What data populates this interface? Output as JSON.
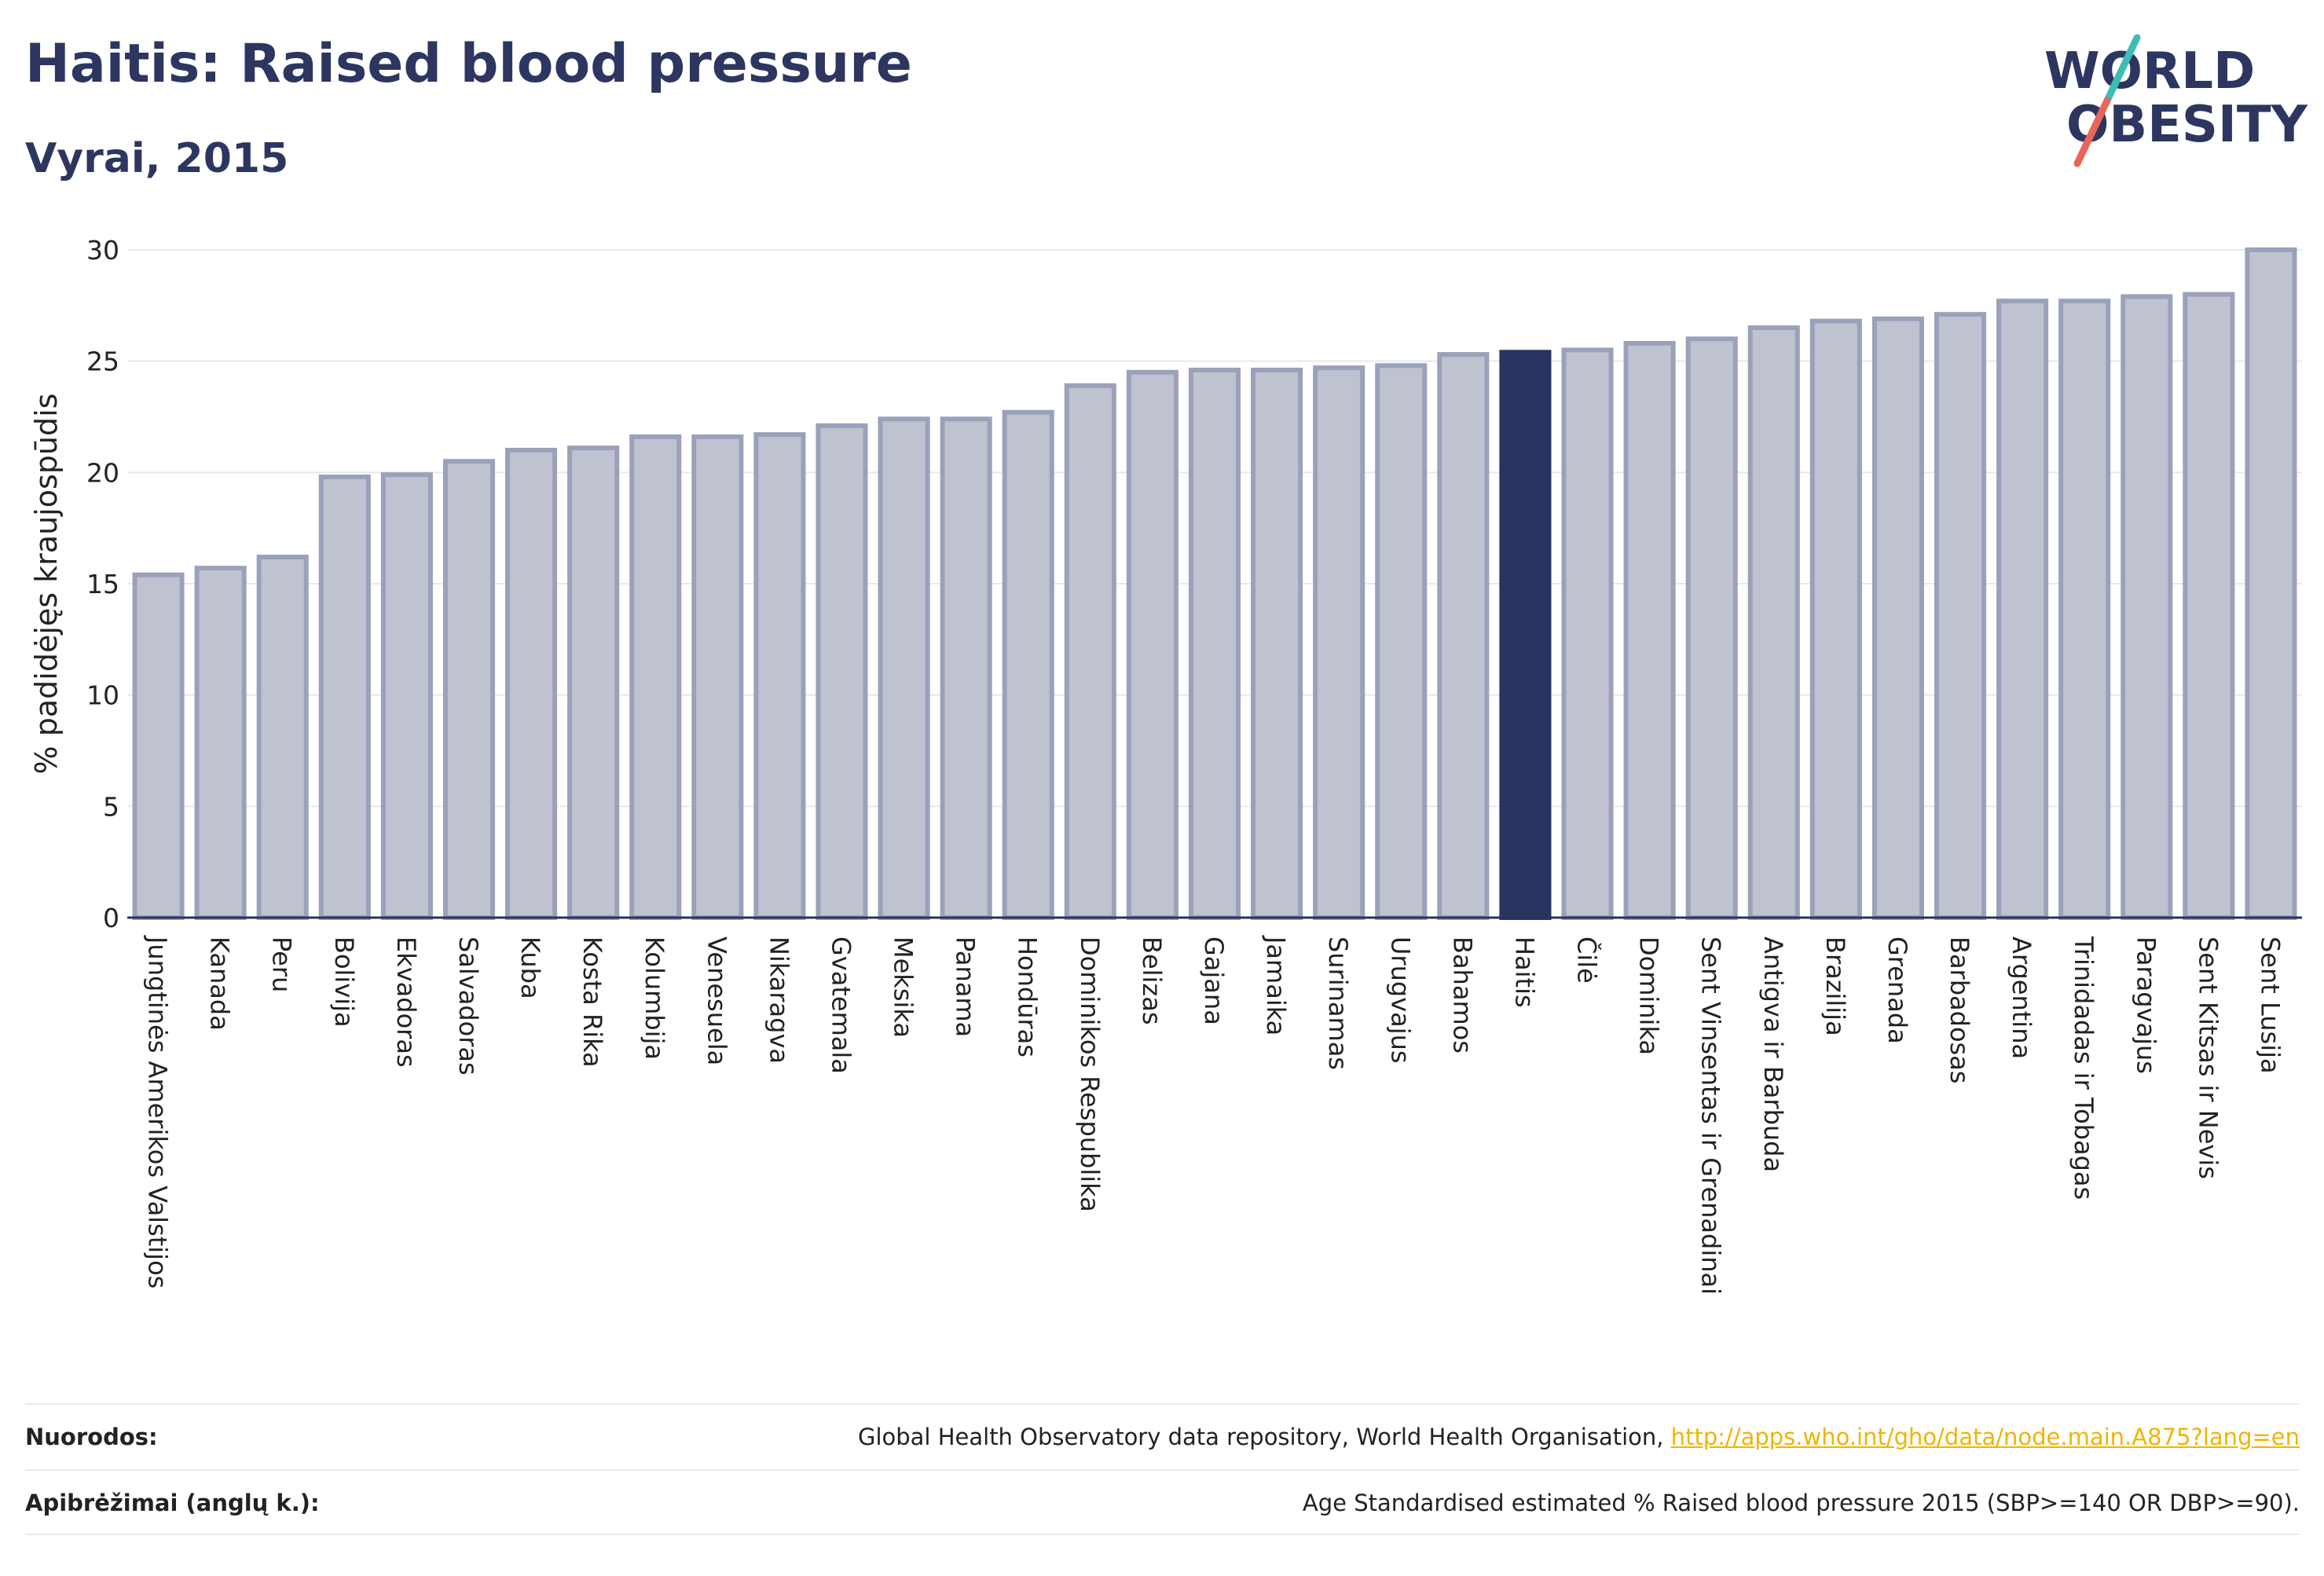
{
  "header": {
    "title": "Haitis: Raised blood pressure",
    "subtitle": "Vyrai, 2015",
    "logo_line1": "WORLD",
    "logo_line2": "OBESITY"
  },
  "chart_data": {
    "type": "bar",
    "title": "Haitis: Raised blood pressure",
    "subtitle": "Vyrai, 2015",
    "ylabel": "% padidėjęs kraujospūdis",
    "xlabel": "",
    "ylim": [
      0,
      30
    ],
    "yticks": [
      0,
      5,
      10,
      15,
      20,
      25,
      30
    ],
    "grid": true,
    "highlight": "Haitis",
    "categories": [
      "Jungtinės Amerikos Valstijos",
      "Kanada",
      "Peru",
      "Bolivija",
      "Ekvadoras",
      "Salvadoras",
      "Kuba",
      "Kosta Rika",
      "Kolumbija",
      "Venesuela",
      "Nikaragva",
      "Gvatemala",
      "Meksika",
      "Panama",
      "Hondūras",
      "Dominikos Respublika",
      "Belizas",
      "Gajana",
      "Jamaika",
      "Surinamas",
      "Urugvajus",
      "Bahamos",
      "Haitis",
      "Čilė",
      "Dominika",
      "Sent Vinsentas ir Grenadinai",
      "Antigva ir Barbuda",
      "Brazilija",
      "Grenada",
      "Barbadosas",
      "Argentina",
      "Trinidadas ir Tobagas",
      "Paragvajus",
      "Sent Kitsas ir Nevis",
      "Sent Lusija"
    ],
    "values": [
      15.4,
      15.7,
      16.2,
      19.8,
      19.9,
      20.5,
      21.0,
      21.1,
      21.6,
      21.6,
      21.7,
      22.1,
      22.4,
      22.4,
      22.7,
      23.9,
      24.5,
      24.6,
      24.6,
      24.7,
      24.8,
      25.3,
      25.4,
      25.5,
      25.8,
      26.0,
      26.5,
      26.8,
      26.9,
      27.1,
      27.7,
      27.7,
      27.9,
      28.0,
      30.0
    ]
  },
  "colors": {
    "bar": "#bfc3d0",
    "bar_stroke": "#9ba1bb",
    "highlight": "#2a3460",
    "title": "#2d3660",
    "grid": "#e6e8ef",
    "axis": "#2a3358",
    "logo_teal": "#3ebdb4",
    "logo_red": "#e8655a",
    "link": "#f0b400"
  },
  "footer": {
    "sources_label": "Nuorodos:",
    "sources_text": "Global Health Observatory data repository, World Health Organisation, ",
    "sources_link": "http://apps.who.int/gho/data/node.main.A875?lang=en",
    "definitions_label": "Apibrėžimai (anglų k.):",
    "definitions_text": "Age Standardised estimated % Raised blood pressure 2015 (SBP>=140 OR DBP>=90)."
  }
}
